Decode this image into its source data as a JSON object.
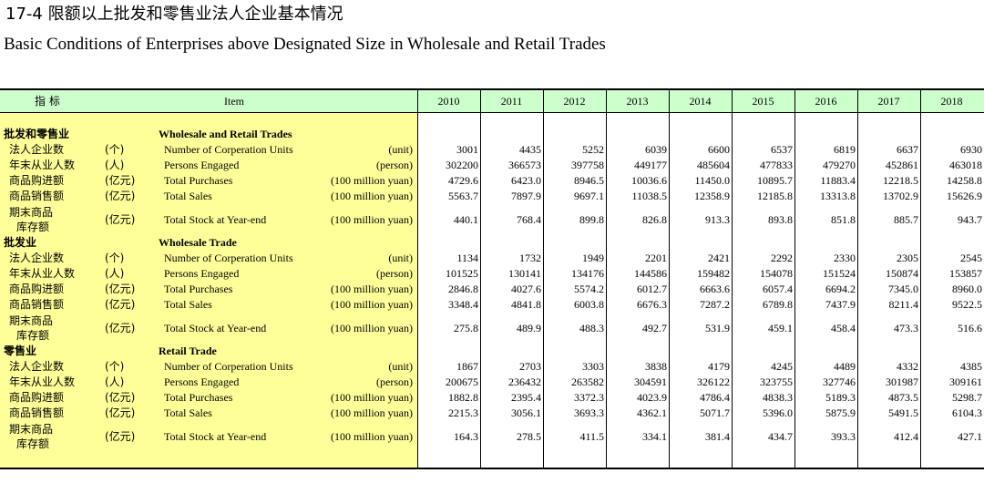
{
  "title": {
    "cn": "17-4  限额以上批发和零售业法人企业基本情况",
    "en": "Basic Conditions of Enterprises above Designated Size in Wholesale and Retail Trades"
  },
  "header": {
    "indicator": "指   标",
    "item": "Item",
    "years": [
      "2010",
      "2011",
      "2012",
      "2013",
      "2014",
      "2015",
      "2016",
      "2017",
      "2018"
    ]
  },
  "sections": [
    {
      "cn": "批发和零售业",
      "en": "Wholesale and Retail Trades",
      "rows": [
        {
          "cn": "法人企业数",
          "unit_cn": "(个)",
          "en": "Number of Corperation Units",
          "unit_en": "(unit)",
          "values": [
            "3001",
            "4435",
            "5252",
            "6039",
            "6600",
            "6537",
            "6819",
            "6637",
            "6930"
          ]
        },
        {
          "cn": "年末从业人数",
          "unit_cn": "(人)",
          "en": "Persons Engaged",
          "unit_en": "(person)",
          "values": [
            "302200",
            "366573",
            "397758",
            "449177",
            "485604",
            "477833",
            "479270",
            "452861",
            "463018"
          ]
        },
        {
          "cn": "商品购进额",
          "unit_cn": "(亿元)",
          "en": "Total Purchases",
          "unit_en": "(100 million yuan)",
          "values": [
            "4729.6",
            "6423.0",
            "8946.5",
            "10036.6",
            "11450.0",
            "10895.7",
            "11883.4",
            "12218.5",
            "14258.8"
          ]
        },
        {
          "cn": "商品销售额",
          "unit_cn": "(亿元)",
          "en": "Total Sales",
          "unit_en": "(100 million yuan)",
          "values": [
            "5563.7",
            "7897.9",
            "9697.1",
            "11038.5",
            "12358.9",
            "12185.8",
            "13313.8",
            "13702.9",
            "15626.9"
          ]
        },
        {
          "cn": "期末商品",
          "cn2": "库存额",
          "unit_cn": "(亿元)",
          "en": "Total Stock at Year-end",
          "unit_en": "(100 million yuan)",
          "values": [
            "440.1",
            "768.4",
            "899.8",
            "826.8",
            "913.3",
            "893.8",
            "851.8",
            "885.7",
            "943.7"
          ]
        }
      ]
    },
    {
      "cn": "批发业",
      "en": "Wholesale Trade",
      "rows": [
        {
          "cn": "法人企业数",
          "unit_cn": "(个)",
          "en": "Number of Corperation Units",
          "unit_en": "(unit)",
          "values": [
            "1134",
            "1732",
            "1949",
            "2201",
            "2421",
            "2292",
            "2330",
            "2305",
            "2545"
          ]
        },
        {
          "cn": "年末从业人数",
          "unit_cn": "(人)",
          "en": "Persons Engaged",
          "unit_en": "(person)",
          "values": [
            "101525",
            "130141",
            "134176",
            "144586",
            "159482",
            "154078",
            "151524",
            "150874",
            "153857"
          ]
        },
        {
          "cn": "商品购进额",
          "unit_cn": "(亿元)",
          "en": "Total Purchases",
          "unit_en": "(100 million yuan)",
          "values": [
            "2846.8",
            "4027.6",
            "5574.2",
            "6012.7",
            "6663.6",
            "6057.4",
            "6694.2",
            "7345.0",
            "8960.0"
          ]
        },
        {
          "cn": "商品销售额",
          "unit_cn": "(亿元)",
          "en": "Total Sales",
          "unit_en": "(100 million yuan)",
          "values": [
            "3348.4",
            "4841.8",
            "6003.8",
            "6676.3",
            "7287.2",
            "6789.8",
            "7437.9",
            "8211.4",
            "9522.5"
          ]
        },
        {
          "cn": "期末商品",
          "cn2": "库存额",
          "unit_cn": "(亿元)",
          "en": "Total Stock at Year-end",
          "unit_en": "(100 million yuan)",
          "values": [
            "275.8",
            "489.9",
            "488.3",
            "492.7",
            "531.9",
            "459.1",
            "458.4",
            "473.3",
            "516.6"
          ]
        }
      ]
    },
    {
      "cn": "零售业",
      "en": "Retail Trade",
      "rows": [
        {
          "cn": "法人企业数",
          "unit_cn": "(个)",
          "en": "Number of Corperation Units",
          "unit_en": "(unit)",
          "values": [
            "1867",
            "2703",
            "3303",
            "3838",
            "4179",
            "4245",
            "4489",
            "4332",
            "4385"
          ]
        },
        {
          "cn": "年末从业人数",
          "unit_cn": "(人)",
          "en": "Persons Engaged",
          "unit_en": "(person)",
          "values": [
            "200675",
            "236432",
            "263582",
            "304591",
            "326122",
            "323755",
            "327746",
            "301987",
            "309161"
          ]
        },
        {
          "cn": "商品购进额",
          "unit_cn": "(亿元)",
          "en": "Total Purchases",
          "unit_en": "(100 million yuan)",
          "values": [
            "1882.8",
            "2395.4",
            "3372.3",
            "4023.9",
            "4786.4",
            "4838.3",
            "5189.3",
            "4873.5",
            "5298.7"
          ]
        },
        {
          "cn": "商品销售额",
          "unit_cn": "(亿元)",
          "en": "Total Sales",
          "unit_en": "(100 million yuan)",
          "values": [
            "2215.3",
            "3056.1",
            "3693.3",
            "4362.1",
            "5071.7",
            "5396.0",
            "5875.9",
            "5491.5",
            "6104.3"
          ]
        },
        {
          "cn": "期末商品",
          "cn2": "库存额",
          "unit_cn": "(亿元)",
          "en": "Total Stock at Year-end",
          "unit_en": "(100 million yuan)",
          "values": [
            "164.3",
            "278.5",
            "411.5",
            "334.1",
            "381.4",
            "434.7",
            "393.3",
            "412.4",
            "427.1"
          ]
        }
      ]
    }
  ]
}
